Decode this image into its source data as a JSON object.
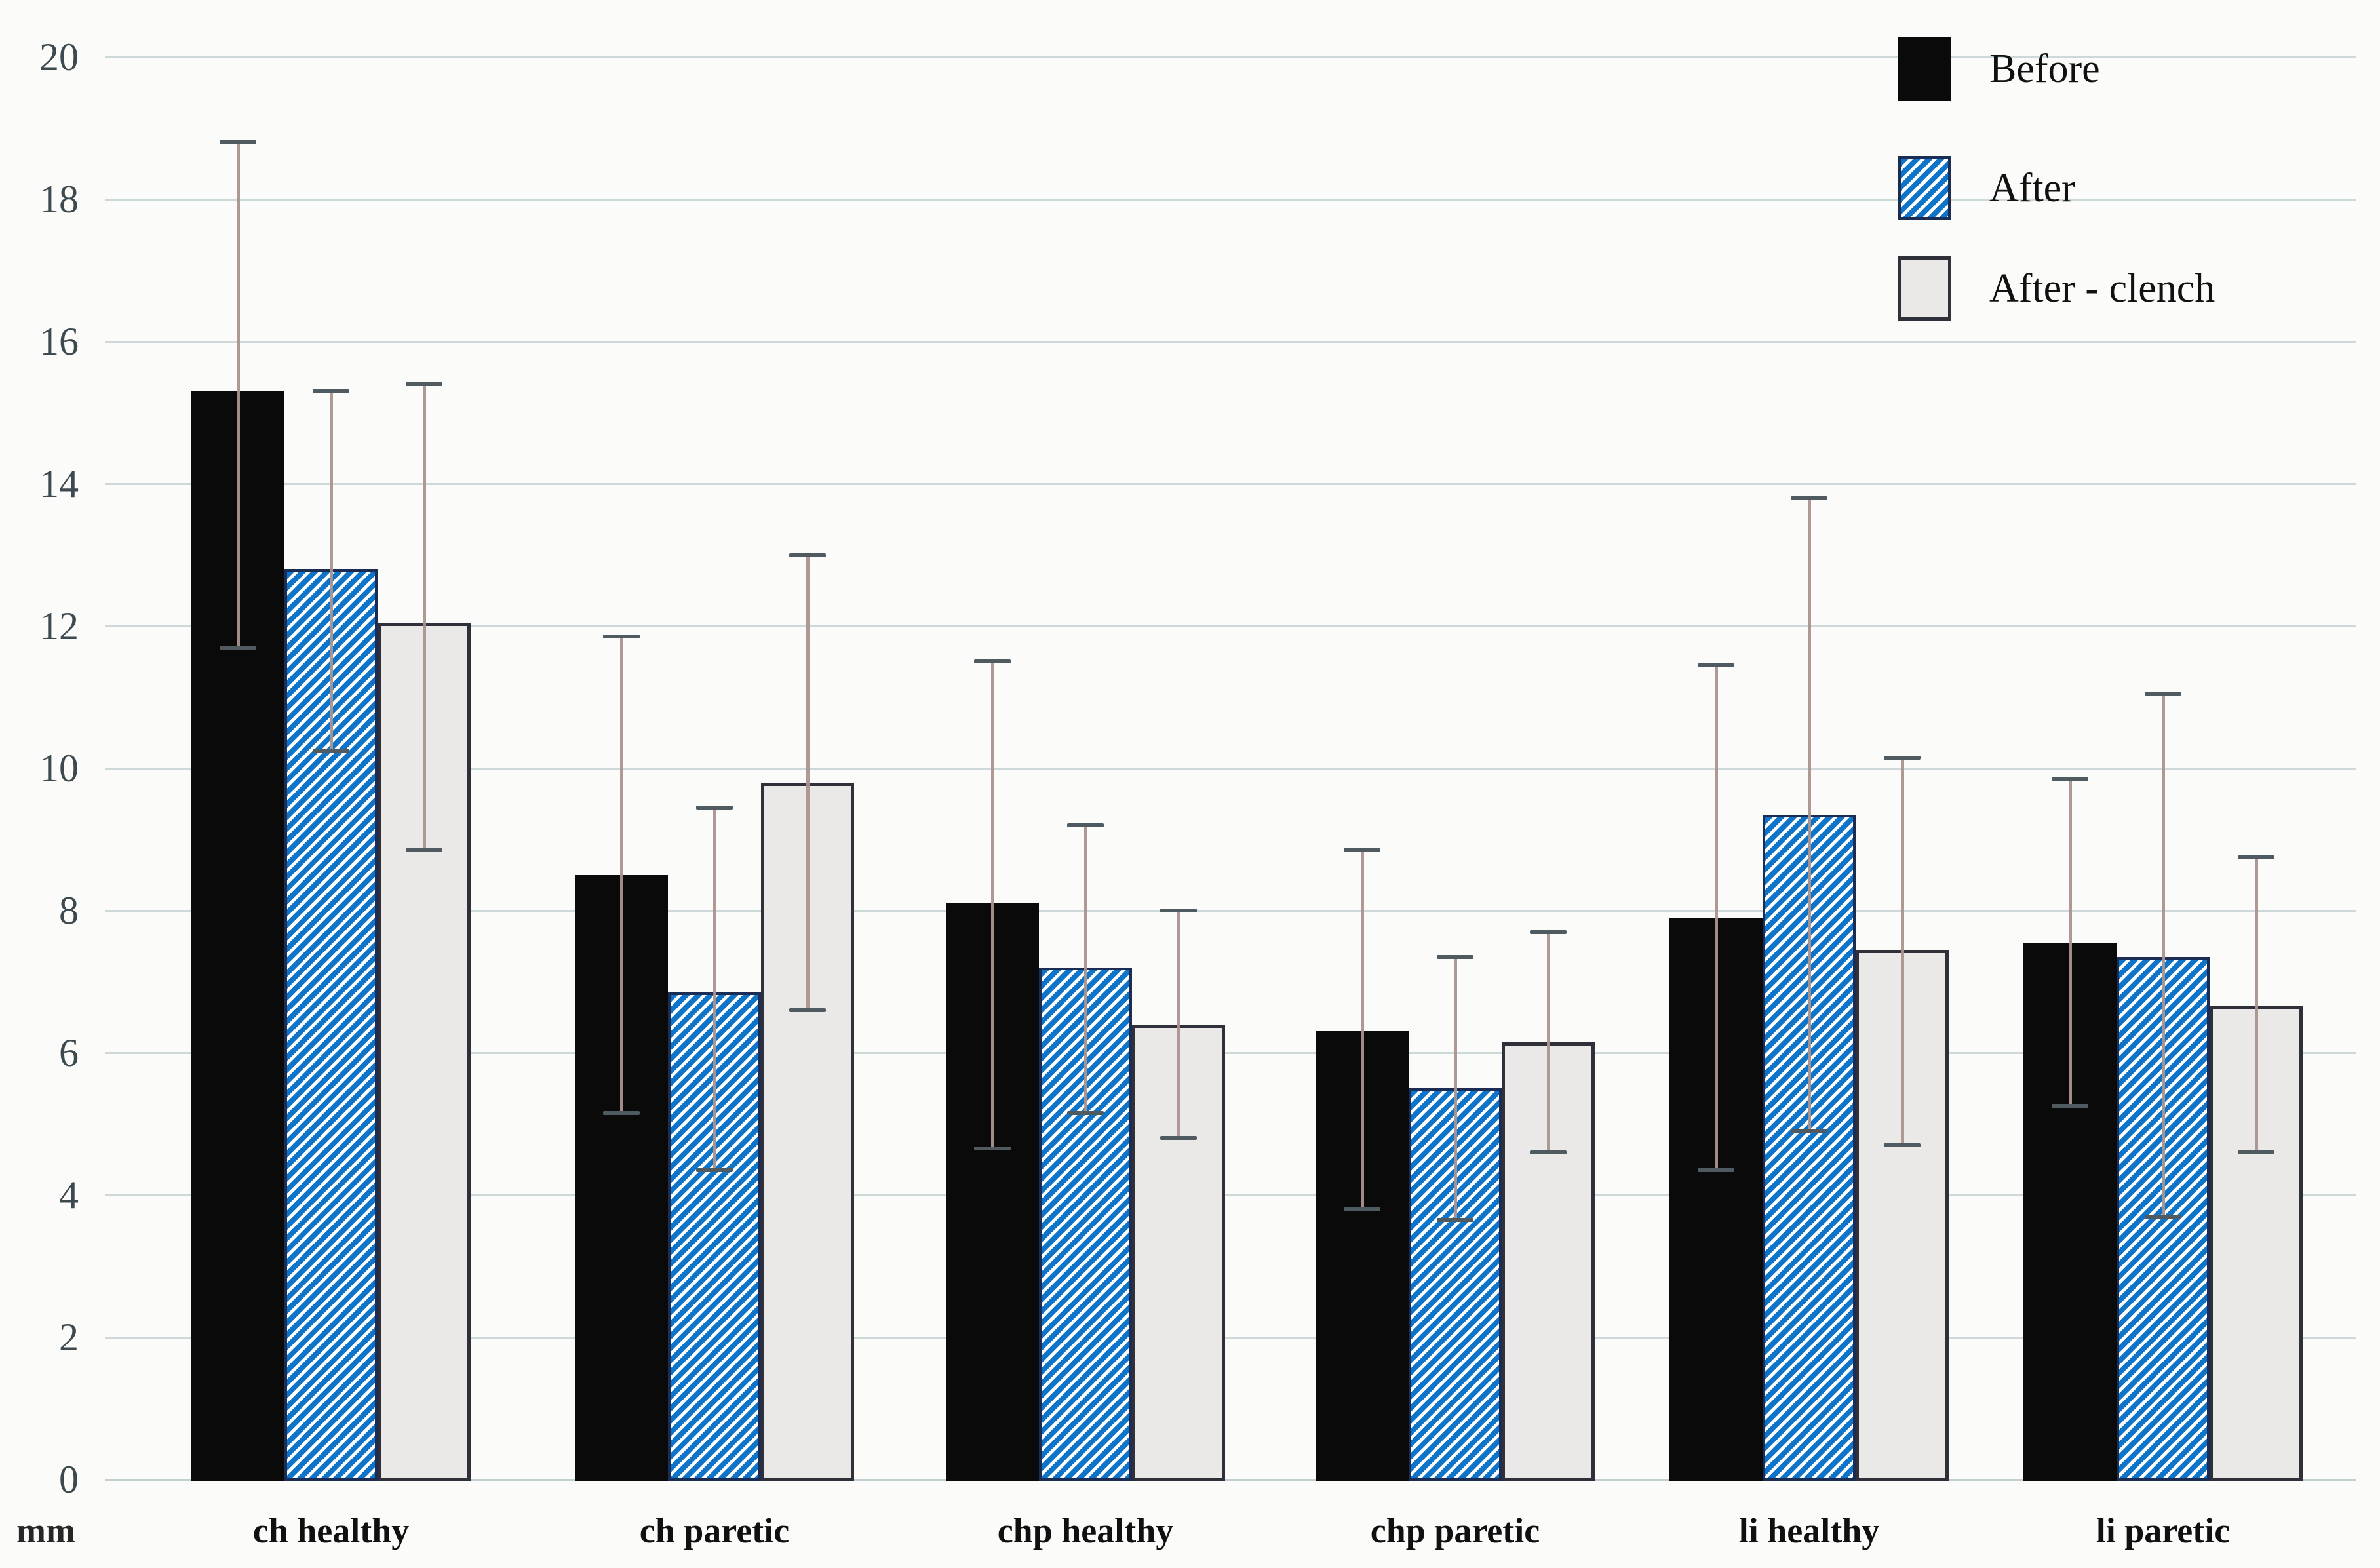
{
  "unit_label": "mm",
  "chart_data": {
    "type": "bar",
    "title": "",
    "xlabel": "",
    "ylabel": "mm",
    "unit_label": "mm",
    "grid": true,
    "legend_position": "top-right",
    "y_axis": {
      "min": 0,
      "max": 20,
      "step": 2,
      "ticks": [
        0,
        2,
        4,
        6,
        8,
        10,
        12,
        14,
        16,
        18,
        20
      ]
    },
    "categories": [
      "ch healthy",
      "ch paretic",
      "chp healthy",
      "chp paretic",
      "li healthy",
      "li paretic"
    ],
    "series": [
      {
        "name": "Before",
        "style": "solid-black",
        "values": [
          15.3,
          8.5,
          8.1,
          6.3,
          7.9,
          7.55
        ],
        "err_high": [
          18.8,
          11.85,
          11.5,
          8.85,
          11.45,
          9.85
        ],
        "err_low": [
          11.7,
          5.15,
          4.65,
          3.8,
          4.35,
          5.25
        ]
      },
      {
        "name": "After",
        "style": "blue-diagonal-hatch",
        "values": [
          12.8,
          6.85,
          7.2,
          5.5,
          9.35,
          7.35
        ],
        "err_high": [
          15.3,
          9.45,
          9.2,
          7.35,
          13.8,
          11.05
        ],
        "err_low": [
          10.25,
          4.35,
          5.15,
          3.65,
          4.9,
          3.7
        ]
      },
      {
        "name": "After - clench",
        "style": "light-gray",
        "values": [
          12.05,
          9.8,
          6.4,
          6.15,
          7.45,
          6.65
        ],
        "err_high": [
          15.4,
          13.0,
          8.0,
          7.7,
          10.15,
          8.75
        ],
        "err_low": [
          8.85,
          6.6,
          4.8,
          4.6,
          4.7,
          4.6
        ]
      }
    ],
    "colors": {
      "before_fill": "#0a0a0a",
      "after_stripe": "#0d74c9",
      "after_border": "#1b2c55",
      "clench_fill": "#ebe9e7",
      "clench_border": "#30303a",
      "gridline": "#cdd8d8",
      "error_line": "#ab938e",
      "error_cap": "#4f5a61",
      "tick_text": "#3c4a50",
      "background": "#fbfbf9"
    }
  }
}
